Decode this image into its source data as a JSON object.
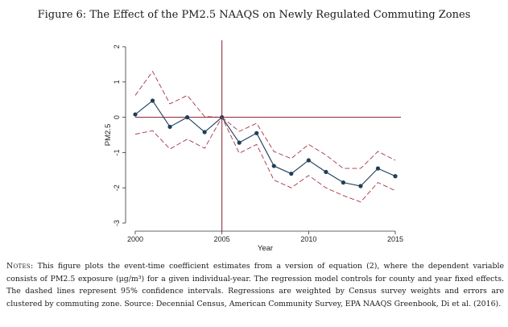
{
  "figure": {
    "title": "Figure 6: The Effect of the PM2.5 NAAQS on Newly Regulated Commuting Zones"
  },
  "notes": {
    "label": "Notes:",
    "text": " This figure plots the event-time coefficient estimates from a version of equation (2), where the dependent variable consists of PM2.5 exposure (μg/m³) for a given individual-year. The regression model controls for county and year fixed effects. The dashed lines represent 95% confidence intervals. Regressions are weighted by Census survey weights and errors are clustered by commuting zone. Source: Decennial Census, American Community Survey, EPA NAAQS Greenbook, Di et al. (2016)."
  },
  "chart_data": {
    "type": "line",
    "title": "",
    "xlabel": "Year",
    "ylabel": "PM2.5",
    "xlim": [
      2000,
      2015
    ],
    "ylim": [
      -3,
      2
    ],
    "xticks": [
      "2000",
      "2005",
      "2010",
      "2015"
    ],
    "yticks": [
      "-3",
      "-2",
      "-1",
      "0",
      "1",
      "2"
    ],
    "reference_lines": {
      "vertical_x": 2005,
      "horizontal_y": 0
    },
    "x": [
      2000,
      2001,
      2002,
      2003,
      2004,
      2005,
      2006,
      2007,
      2008,
      2009,
      2010,
      2011,
      2012,
      2013,
      2014,
      2015
    ],
    "series": [
      {
        "role": "estimate",
        "style": "solid-with-markers",
        "color": "#1f3e5a",
        "values": [
          0.08,
          0.47,
          -0.27,
          0.0,
          -0.42,
          0.0,
          -0.72,
          -0.45,
          -1.38,
          -1.6,
          -1.22,
          -1.55,
          -1.85,
          -1.95,
          -1.45,
          -1.67
        ]
      },
      {
        "role": "upper-95-ci",
        "style": "dashed",
        "color": "#a53545",
        "values": [
          0.62,
          1.3,
          0.38,
          0.62,
          0.02,
          0.0,
          -0.4,
          -0.17,
          -0.97,
          -1.17,
          -0.77,
          -1.07,
          -1.45,
          -1.45,
          -0.97,
          -1.22
        ]
      },
      {
        "role": "lower-95-ci",
        "style": "dashed",
        "color": "#a53545",
        "values": [
          -0.48,
          -0.38,
          -0.9,
          -0.62,
          -0.88,
          0.0,
          -1.02,
          -0.77,
          -1.78,
          -2.0,
          -1.65,
          -2.0,
          -2.22,
          -2.4,
          -1.85,
          -2.08
        ]
      }
    ],
    "reference_line_color": "#8a1c2c",
    "grid": false,
    "legend": "none"
  }
}
